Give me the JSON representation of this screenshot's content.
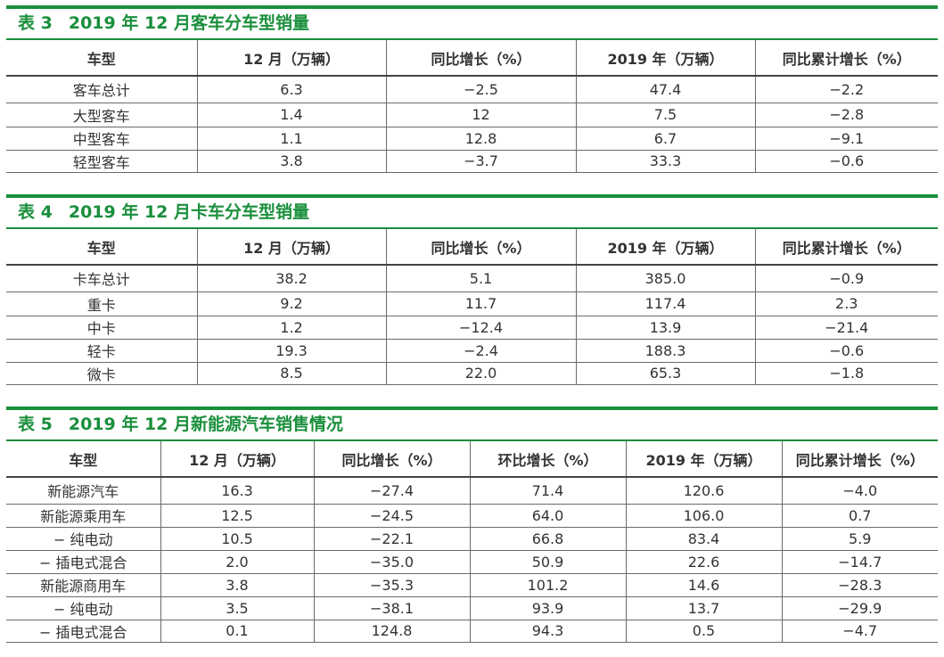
{
  "colors": {
    "accent": "#1a8f3c",
    "text": "#333333",
    "rule": "#6a6a6a"
  },
  "table3": {
    "id": "表 3",
    "title": "2019 年 12 月客车分车型销量",
    "headers": [
      "车型",
      "12 月（万辆）",
      "同比增长（%）",
      "2019 年（万辆）",
      "同比累计增长（%）"
    ],
    "rows": [
      [
        "客车总计",
        "6.3",
        "−2.5",
        "47.4",
        "−2.2"
      ],
      [
        "大型客车",
        "1.4",
        "12",
        "7.5",
        "−2.8"
      ],
      [
        "中型客车",
        "1.1",
        "12.8",
        "6.7",
        "−9.1"
      ],
      [
        "轻型客车",
        "3.8",
        "−3.7",
        "33.3",
        "−0.6"
      ]
    ]
  },
  "table4": {
    "id": "表 4",
    "title": "2019 年 12 月卡车分车型销量",
    "headers": [
      "车型",
      "12 月（万辆）",
      "同比增长（%）",
      "2019 年（万辆）",
      "同比累计增长（%）"
    ],
    "rows": [
      [
        "卡车总计",
        "38.2",
        "5.1",
        "385.0",
        "−0.9"
      ],
      [
        "重卡",
        "9.2",
        "11.7",
        "117.4",
        "2.3"
      ],
      [
        "中卡",
        "1.2",
        "−12.4",
        "13.9",
        "−21.4"
      ],
      [
        "轻卡",
        "19.3",
        "−2.4",
        "188.3",
        "−0.6"
      ],
      [
        "微卡",
        "8.5",
        "22.0",
        "65.3",
        "−1.8"
      ]
    ]
  },
  "table5": {
    "id": "表 5",
    "title": "2019 年 12 月新能源汽车销售情况",
    "headers": [
      "车型",
      "12 月（万辆）",
      "同比增长（%）",
      "环比增长（%）",
      "2019 年（万辆）",
      "同比累计增长（%）"
    ],
    "rows": [
      [
        "新能源汽车",
        "16.3",
        "−27.4",
        "71.4",
        "120.6",
        "−4.0"
      ],
      [
        "新能源乘用车",
        "12.5",
        "−24.5",
        "64.0",
        "106.0",
        "0.7"
      ],
      [
        "− 纯电动",
        "10.5",
        "−22.1",
        "66.8",
        "83.4",
        "5.9"
      ],
      [
        "− 插电式混合",
        "2.0",
        "−35.0",
        "50.9",
        "22.6",
        "−14.7"
      ],
      [
        "新能源商用车",
        "3.8",
        "−35.3",
        "101.2",
        "14.6",
        "−28.3"
      ],
      [
        "− 纯电动",
        "3.5",
        "−38.1",
        "93.9",
        "13.7",
        "−29.9"
      ],
      [
        "− 插电式混合",
        "0.1",
        "124.8",
        "94.3",
        "0.5",
        "−4.7"
      ]
    ]
  }
}
